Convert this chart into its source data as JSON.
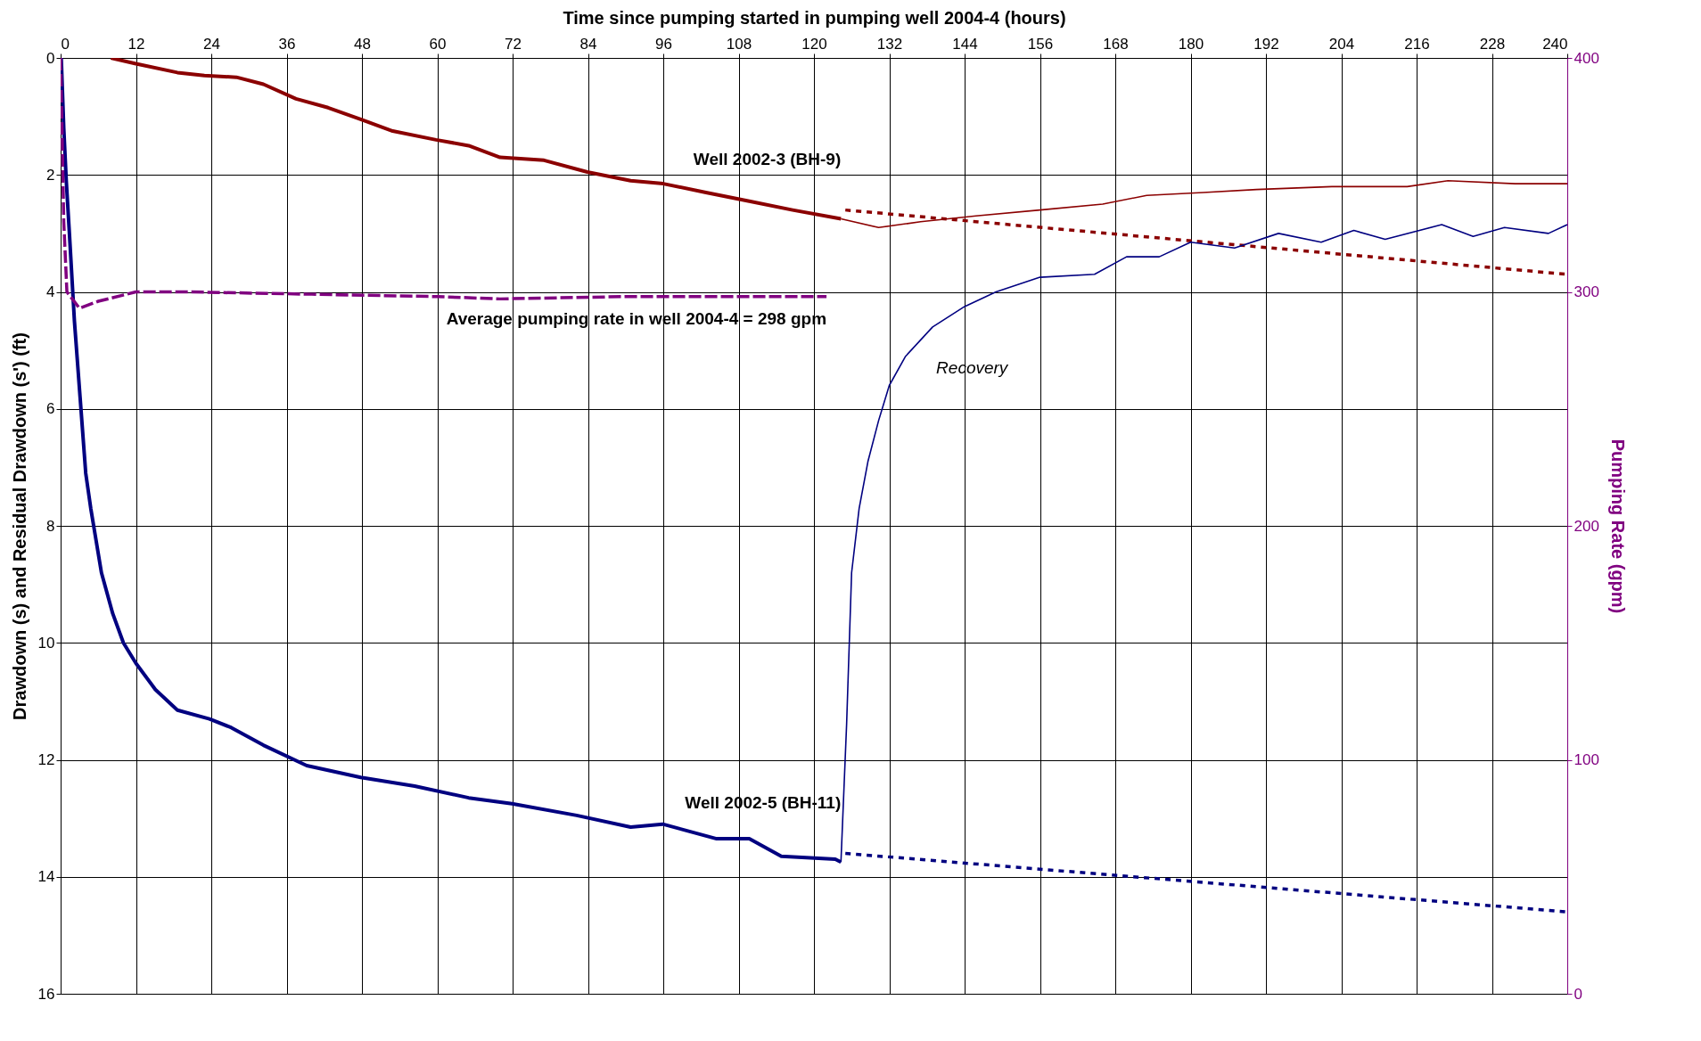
{
  "chart_data": {
    "type": "line",
    "xlabel": "Time since pumping started in pumping well 2004-4 (hours)",
    "ylabel": "Drawdown (s) and Residual Drawdown (s') (ft)",
    "y2label": "Pumping Rate (gpm)",
    "xlim": [
      0,
      240
    ],
    "xticks": [
      0,
      12,
      24,
      36,
      48,
      60,
      72,
      84,
      96,
      108,
      120,
      132,
      144,
      156,
      168,
      180,
      192,
      204,
      216,
      228,
      240
    ],
    "ylim": [
      16,
      0
    ],
    "yticks": [
      0,
      2,
      4,
      6,
      8,
      10,
      12,
      14,
      16
    ],
    "y2lim": [
      0,
      400
    ],
    "y2ticks": [
      0,
      100,
      200,
      300,
      400
    ],
    "grid": true,
    "series": [
      {
        "name": "Well 2002-3 (BH-9)",
        "color": "#8b0000",
        "line_style": "solid",
        "x": [
          8,
          12,
          18.6,
          22.9,
          28,
          32.3,
          37.5,
          42.6,
          47.8,
          52.9,
          59.8,
          65,
          70,
          77,
          83.9,
          90.8,
          96,
          102.8,
          109.7,
          116.6,
          124.3
        ],
        "values": [
          0,
          0.1,
          0.25,
          0.3,
          0.33,
          0.45,
          0.7,
          0.85,
          1.05,
          1.25,
          1.4,
          1.5,
          1.7,
          1.75,
          1.95,
          2.1,
          2.15,
          2.3,
          2.45,
          2.6,
          2.75
        ]
      },
      {
        "color": "#8b0000",
        "line_style": "solid",
        "x": [
          124.3,
          130.3,
          137,
          145.8,
          156,
          166,
          173,
          182,
          190.5,
          202.5,
          214.5,
          221,
          231.7,
          240
        ],
        "values": [
          2.75,
          2.9,
          2.8,
          2.7,
          2.6,
          2.5,
          2.35,
          2.3,
          2.25,
          2.2,
          2.2,
          2.1,
          2.15,
          2.15
        ]
      },
      {
        "color": "#8b0000",
        "line_style": "dotted",
        "x": [
          125,
          240
        ],
        "values": [
          2.6,
          3.7
        ]
      },
      {
        "name": "Well 2002-5 (BH-11)",
        "color": "#000080",
        "line_style": "solid",
        "x": [
          0,
          0.1,
          0.5,
          0.9,
          1.4,
          2.2,
          3.1,
          4,
          4.8,
          6.5,
          8.3,
          10,
          12,
          15.1,
          18.6,
          23.7,
          27.2,
          32.3,
          39.2,
          47.8,
          56.4,
          65,
          71.9,
          82.2,
          90.8,
          95.9,
          104.5,
          109.7,
          114.8,
          123.4,
          124.3
        ],
        "values": [
          0,
          0,
          1.2,
          2.1,
          3,
          4.5,
          5.8,
          7.1,
          7.7,
          8.8,
          9.5,
          10,
          10.35,
          10.8,
          11.15,
          11.3,
          11.45,
          11.75,
          12.1,
          12.3,
          12.45,
          12.65,
          12.75,
          12.95,
          13.15,
          13.1,
          13.35,
          13.35,
          13.65,
          13.7,
          13.75
        ]
      },
      {
        "color": "#000080",
        "line_style": "solid",
        "x": [
          124.3,
          125.2,
          126,
          127.2,
          128.6,
          130.3,
          132,
          134.6,
          138.9,
          144,
          149,
          156,
          164.7,
          169.8,
          175,
          180,
          187,
          194,
          200.8,
          206,
          211,
          220,
          225,
          230,
          237,
          240
        ],
        "values": [
          13.75,
          11.4,
          8.8,
          7.7,
          6.9,
          6.2,
          5.6,
          5.1,
          4.6,
          4.25,
          4,
          3.75,
          3.7,
          3.4,
          3.4,
          3.15,
          3.25,
          3,
          3.15,
          2.95,
          3.1,
          2.85,
          3.05,
          2.9,
          3,
          2.85
        ]
      },
      {
        "color": "#000080",
        "line_style": "dotted",
        "x": [
          125,
          240
        ],
        "values": [
          13.6,
          14.6
        ]
      },
      {
        "name": "Average pumping rate in well 2004-4 = 298 gpm",
        "color": "#800080",
        "line_style": "dashed",
        "axis": "y2",
        "x": [
          0,
          0.5,
          1,
          3,
          6,
          12,
          20,
          40,
          60,
          70,
          90,
          122
        ],
        "values": [
          400,
          330,
          300,
          293,
          296,
          300,
          300,
          299,
          298,
          297,
          298,
          298
        ]
      }
    ],
    "annotations": [
      {
        "text": "Recovery",
        "x": 138.9,
        "y": 4.6
      }
    ]
  }
}
